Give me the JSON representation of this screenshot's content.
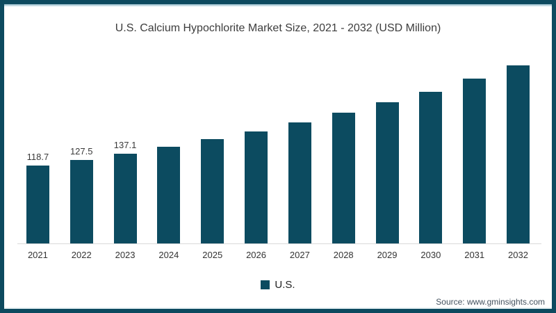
{
  "chart_data": {
    "type": "bar",
    "title": "U.S. Calcium Hypochlorite Market Size, 2021 - 2032 (USD Million)",
    "categories": [
      "2021",
      "2022",
      "2023",
      "2024",
      "2025",
      "2026",
      "2027",
      "2028",
      "2029",
      "2030",
      "2031",
      "2032"
    ],
    "series": [
      {
        "name": "U.S.",
        "values": [
          118.7,
          127.5,
          137.1,
          147.4,
          159.5,
          171.4,
          184.4,
          200.0,
          215.0,
          231.3,
          251.5,
          271.3
        ]
      }
    ],
    "value_labels": [
      "118.7",
      "127.5",
      "137.1",
      "",
      "",
      "",
      "",
      "",
      "",
      "",
      "",
      ""
    ],
    "xlabel": "",
    "ylabel": "",
    "ylim": [
      0,
      365
    ],
    "grid": false,
    "bar_color": "#0c4b60",
    "axis_color": "#d9d9d9",
    "legend": {
      "position": "bottom",
      "items": [
        {
          "label": "U.S.",
          "color": "#0c4b60"
        }
      ]
    }
  },
  "theme": {
    "frame_border": "#0d4a5f",
    "frame_inner_line": "#a3c4d1",
    "background": "#ffffff",
    "title_text": "#3d3d3d",
    "label_text": "#3a3a3a",
    "source_text": "#44525f"
  },
  "footer": {
    "source": "Source: www.gminsights.com"
  }
}
